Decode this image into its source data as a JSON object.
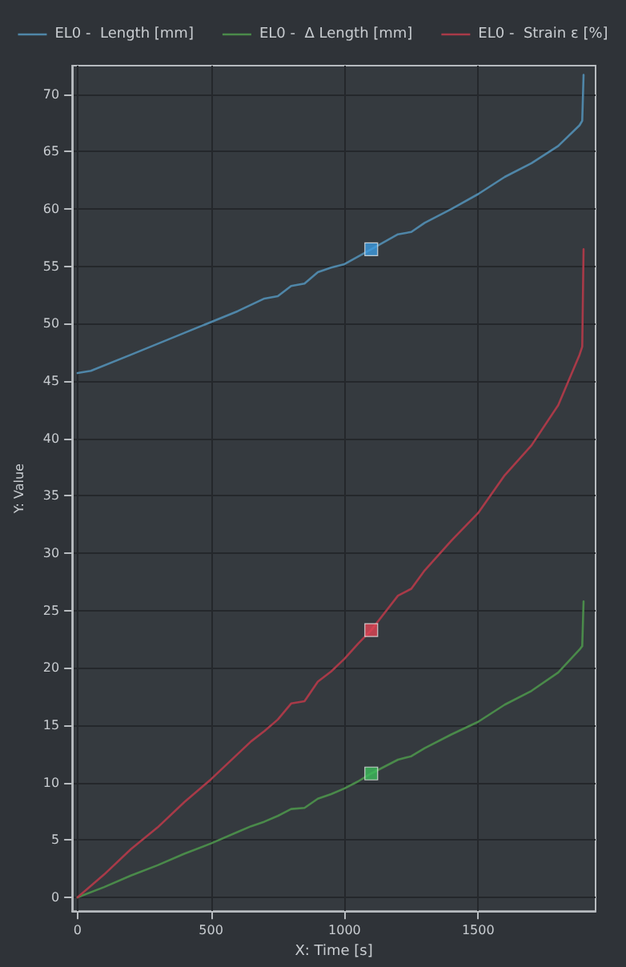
{
  "chart_data": {
    "type": "line",
    "xlabel": "X: Time [s]",
    "ylabel": "Y: Value",
    "xlim": [
      -20,
      1940
    ],
    "xticks": [
      0,
      500,
      1000,
      1500
    ],
    "ylim": [
      -1.2,
      72.5
    ],
    "yticks": [
      0,
      5,
      10,
      15,
      20,
      25,
      30,
      35,
      40,
      45,
      50,
      55,
      60,
      65,
      70
    ],
    "grid": true,
    "legend": "top",
    "marker": "none",
    "line_style": "solid",
    "series": [
      {
        "name": "EL0 -  Length [mm]",
        "color": "#4f86a8",
        "x": [
          0,
          50,
          200,
          400,
          600,
          700,
          750,
          800,
          850,
          900,
          950,
          1000,
          1100,
          1200,
          1250,
          1300,
          1400,
          1500,
          1600,
          1700,
          1800,
          1880,
          1890,
          1895
        ],
        "values": [
          45.7,
          45.9,
          47.3,
          49.2,
          51.1,
          52.2,
          52.4,
          53.3,
          53.5,
          54.5,
          54.9,
          55.2,
          56.5,
          57.8,
          58,
          58.8,
          60,
          61.3,
          62.8,
          64,
          65.5,
          67.3,
          67.7,
          71.7
        ]
      },
      {
        "name": "EL0 -  Δ Length [mm]",
        "color": "#4a8a4a",
        "x": [
          0,
          100,
          200,
          300,
          400,
          500,
          600,
          650,
          700,
          750,
          800,
          850,
          900,
          950,
          1000,
          1050,
          1100,
          1200,
          1250,
          1300,
          1400,
          1500,
          1600,
          1700,
          1800,
          1880,
          1890,
          1895
        ],
        "values": [
          0,
          0.9,
          1.9,
          2.8,
          3.8,
          4.7,
          5.7,
          6.2,
          6.6,
          7.1,
          7.7,
          7.8,
          8.6,
          9,
          9.5,
          10.1,
          10.8,
          12,
          12.3,
          13,
          14.2,
          15.3,
          16.8,
          18,
          19.6,
          21.6,
          21.9,
          25.8
        ]
      },
      {
        "name": "EL0 -  Strain ε [%]",
        "color": "#a83a48",
        "x": [
          0,
          100,
          200,
          300,
          400,
          500,
          600,
          650,
          700,
          750,
          800,
          850,
          900,
          950,
          1000,
          1050,
          1100,
          1200,
          1250,
          1300,
          1400,
          1500,
          1600,
          1700,
          1800,
          1880,
          1890,
          1895
        ],
        "values": [
          0,
          2,
          4.2,
          6.1,
          8.3,
          10.3,
          12.5,
          13.6,
          14.5,
          15.5,
          16.9,
          17.1,
          18.8,
          19.7,
          20.8,
          22.1,
          23.3,
          26.3,
          26.9,
          28.5,
          31.1,
          33.5,
          36.8,
          39.4,
          42.9,
          47.3,
          48,
          56.5
        ]
      },
      {
        "type": "scatter",
        "marker": "square",
        "color": "#3d9be0",
        "x": [
          1100
        ],
        "values": [
          56.5
        ]
      },
      {
        "type": "scatter",
        "marker": "square",
        "color": "#3dbb5c",
        "x": [
          1100
        ],
        "values": [
          10.8
        ]
      },
      {
        "type": "scatter",
        "marker": "square",
        "color": "#e04555",
        "x": [
          1100
        ],
        "values": [
          23.3
        ]
      }
    ]
  }
}
